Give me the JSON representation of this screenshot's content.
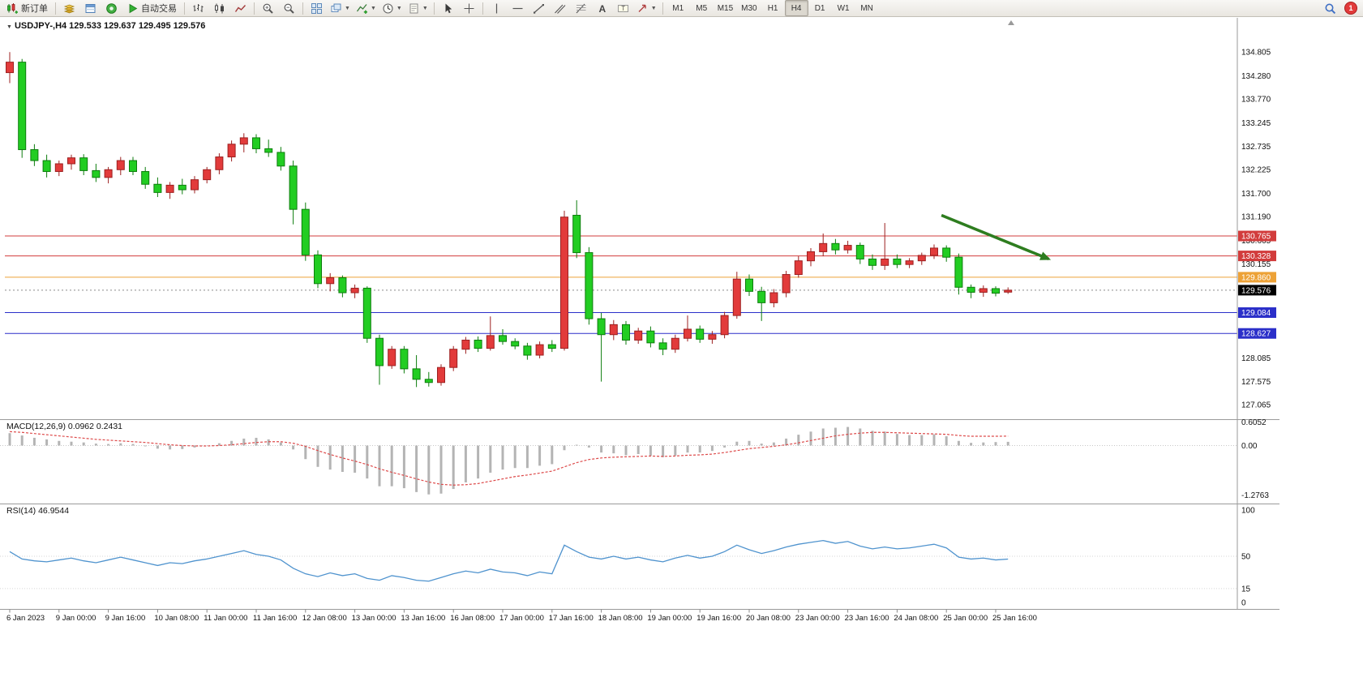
{
  "toolbar": {
    "new_order_label": "新订单",
    "auto_trading_label": "自动交易",
    "timeframes": [
      "M1",
      "M5",
      "M15",
      "M30",
      "H1",
      "H4",
      "D1",
      "W1",
      "MN"
    ],
    "active_timeframe": "H4",
    "notification_count": "1"
  },
  "chart": {
    "symbol_header": "USDJPY-,H4 129.533 129.637 129.495 129.576",
    "macd_label": "MACD(12,26,9) 0.0962 0.2431",
    "rsi_label": "RSI(14) 46.9544",
    "price_axis_labels": [
      "134.805",
      "134.280",
      "133.770",
      "133.245",
      "132.735",
      "132.225",
      "131.700",
      "131.190",
      "130.665",
      "130.155",
      "128.085",
      "127.575",
      "127.065"
    ],
    "macd_axis_labels": [
      "0.6052",
      "0.00",
      "-1.2763"
    ],
    "rsi_axis_labels": [
      "100",
      "50",
      "15",
      "0"
    ],
    "time_axis_labels": [
      "6 Jan 2023",
      "9 Jan 00:00",
      "9 Jan 16:00",
      "10 Jan 08:00",
      "11 Jan 00:00",
      "11 Jan 16:00",
      "12 Jan 08:00",
      "13 Jan 00:00",
      "13 Jan 16:00",
      "16 Jan 08:00",
      "17 Jan 00:00",
      "17 Jan 16:00",
      "18 Jan 08:00",
      "19 Jan 00:00",
      "19 Jan 16:00",
      "20 Jan 08:00",
      "23 Jan 00:00",
      "23 Jan 16:00",
      "24 Jan 08:00",
      "25 Jan 00:00",
      "25 Jan 16:00"
    ],
    "current_price": {
      "value": 129.576,
      "label": "129.576",
      "badge_bg": "#000000",
      "text_color": "#ffffff"
    }
  },
  "chart_data": {
    "type": "candlestick",
    "symbol": "USDJPY-",
    "timeframe": "H4",
    "last_ohlc": {
      "open": 129.533,
      "high": 129.637,
      "low": 129.495,
      "close": 129.576
    },
    "colors": {
      "up": "#e23b3b",
      "up_border": "#9c2020",
      "down": "#22cd22",
      "down_border": "#0d7d0d",
      "macd_histogram": "#b4b4b4",
      "macd_signal": "#dd4a4a",
      "rsi_line": "#4f93ce",
      "arrow": "#2e7d1f"
    },
    "hlines": [
      {
        "price": 130.765,
        "label": "130.765",
        "color": "#d23c3c"
      },
      {
        "price": 130.328,
        "label": "130.328",
        "color": "#d23c3c"
      },
      {
        "price": 129.86,
        "label": "129.860",
        "color": "#eda237"
      },
      {
        "price": 129.084,
        "label": "129.084",
        "color": "#2b2fc9"
      },
      {
        "price": 128.627,
        "label": "128.627",
        "color": "#2b2fc9"
      }
    ],
    "candles": [
      [
        134.35,
        134.8,
        134.12,
        134.58
      ],
      [
        134.58,
        134.65,
        132.48,
        132.66
      ],
      [
        132.66,
        132.78,
        132.3,
        132.42
      ],
      [
        132.42,
        132.55,
        132.05,
        132.18
      ],
      [
        132.18,
        132.42,
        132.08,
        132.35
      ],
      [
        132.35,
        132.55,
        132.22,
        132.48
      ],
      [
        132.48,
        132.56,
        132.1,
        132.2
      ],
      [
        132.2,
        132.35,
        131.95,
        132.05
      ],
      [
        132.05,
        132.28,
        131.92,
        132.22
      ],
      [
        132.22,
        132.5,
        132.1,
        132.42
      ],
      [
        132.42,
        132.5,
        132.1,
        132.18
      ],
      [
        132.18,
        132.28,
        131.8,
        131.9
      ],
      [
        131.9,
        132.05,
        131.62,
        131.72
      ],
      [
        131.72,
        131.95,
        131.58,
        131.88
      ],
      [
        131.88,
        132.02,
        131.68,
        131.78
      ],
      [
        131.78,
        132.08,
        131.7,
        132.0
      ],
      [
        132.0,
        132.28,
        131.92,
        132.22
      ],
      [
        132.22,
        132.58,
        132.12,
        132.5
      ],
      [
        132.5,
        132.86,
        132.4,
        132.78
      ],
      [
        132.78,
        133.02,
        132.6,
        132.92
      ],
      [
        132.92,
        133.0,
        132.58,
        132.68
      ],
      [
        132.68,
        132.88,
        132.5,
        132.6
      ],
      [
        132.6,
        132.72,
        132.2,
        132.3
      ],
      [
        132.3,
        132.42,
        131.02,
        131.35
      ],
      [
        131.35,
        131.5,
        130.22,
        130.35
      ],
      [
        130.35,
        130.45,
        129.62,
        129.72
      ],
      [
        129.72,
        129.95,
        129.55,
        129.85
      ],
      [
        129.85,
        129.9,
        129.42,
        129.52
      ],
      [
        129.52,
        129.7,
        129.4,
        129.62
      ],
      [
        129.62,
        129.66,
        128.42,
        128.52
      ],
      [
        128.52,
        128.6,
        127.5,
        127.92
      ],
      [
        127.92,
        128.35,
        127.85,
        128.28
      ],
      [
        128.28,
        128.35,
        127.75,
        127.85
      ],
      [
        127.85,
        128.15,
        127.45,
        127.62
      ],
      [
        127.62,
        127.78,
        127.46,
        127.55
      ],
      [
        127.55,
        127.95,
        127.48,
        127.88
      ],
      [
        127.88,
        128.35,
        127.8,
        128.28
      ],
      [
        128.28,
        128.55,
        128.18,
        128.48
      ],
      [
        128.48,
        128.56,
        128.22,
        128.3
      ],
      [
        128.3,
        129.0,
        128.25,
        128.58
      ],
      [
        128.58,
        128.72,
        128.38,
        128.45
      ],
      [
        128.45,
        128.52,
        128.28,
        128.35
      ],
      [
        128.35,
        128.42,
        128.05,
        128.15
      ],
      [
        128.15,
        128.45,
        128.08,
        128.38
      ],
      [
        128.38,
        128.48,
        128.22,
        128.3
      ],
      [
        128.3,
        131.32,
        128.25,
        131.18
      ],
      [
        131.22,
        131.55,
        130.28,
        130.4
      ],
      [
        130.4,
        130.52,
        128.82,
        128.95
      ],
      [
        128.95,
        129.08,
        127.57,
        128.6
      ],
      [
        128.6,
        128.92,
        128.48,
        128.82
      ],
      [
        128.82,
        128.9,
        128.38,
        128.48
      ],
      [
        128.48,
        128.75,
        128.4,
        128.68
      ],
      [
        128.68,
        128.78,
        128.32,
        128.42
      ],
      [
        128.42,
        128.52,
        128.15,
        128.28
      ],
      [
        128.28,
        128.6,
        128.2,
        128.52
      ],
      [
        128.52,
        129.02,
        128.45,
        128.72
      ],
      [
        128.72,
        128.8,
        128.42,
        128.5
      ],
      [
        128.5,
        128.68,
        128.4,
        128.6
      ],
      [
        128.6,
        129.1,
        128.52,
        129.02
      ],
      [
        129.02,
        129.98,
        128.95,
        129.82
      ],
      [
        129.82,
        129.92,
        129.45,
        129.55
      ],
      [
        129.55,
        129.65,
        128.9,
        129.3
      ],
      [
        129.3,
        129.6,
        129.2,
        129.52
      ],
      [
        129.52,
        130.0,
        129.42,
        129.92
      ],
      [
        129.92,
        130.32,
        129.85,
        130.22
      ],
      [
        130.22,
        130.5,
        130.1,
        130.42
      ],
      [
        130.42,
        130.82,
        130.32,
        130.6
      ],
      [
        130.6,
        130.7,
        130.36,
        130.46
      ],
      [
        130.46,
        130.66,
        130.38,
        130.56
      ],
      [
        130.56,
        130.62,
        130.15,
        130.26
      ],
      [
        130.26,
        130.36,
        130.02,
        130.12
      ],
      [
        130.12,
        131.05,
        130.02,
        130.26
      ],
      [
        130.26,
        130.36,
        130.06,
        130.14
      ],
      [
        130.14,
        130.28,
        130.06,
        130.22
      ],
      [
        130.22,
        130.4,
        130.13,
        130.34
      ],
      [
        130.34,
        130.58,
        130.26,
        130.5
      ],
      [
        130.5,
        130.56,
        130.2,
        130.3
      ],
      [
        130.3,
        130.38,
        129.48,
        129.64
      ],
      [
        129.64,
        129.7,
        129.4,
        129.53
      ],
      [
        129.53,
        129.68,
        129.43,
        129.61
      ],
      [
        129.61,
        129.66,
        129.44,
        129.51
      ],
      [
        129.533,
        129.637,
        129.495,
        129.576
      ]
    ],
    "indicators": {
      "macd": {
        "params": "12,26,9",
        "main_value": 0.0962,
        "signal_value": 0.2431,
        "axis_range": [
          -1.2763,
          0.6052
        ],
        "histogram": [
          0.32,
          0.26,
          0.2,
          0.16,
          0.12,
          0.1,
          0.08,
          0.05,
          0.04,
          0.06,
          0.04,
          -0.02,
          -0.08,
          -0.1,
          -0.09,
          -0.05,
          0.0,
          0.06,
          0.12,
          0.18,
          0.2,
          0.16,
          0.08,
          -0.1,
          -0.35,
          -0.55,
          -0.62,
          -0.68,
          -0.7,
          -0.85,
          -1.05,
          -1.05,
          -1.1,
          -1.2,
          -1.26,
          -1.24,
          -1.12,
          -0.95,
          -0.85,
          -0.7,
          -0.62,
          -0.58,
          -0.58,
          -0.52,
          -0.48,
          -0.12,
          0.02,
          -0.05,
          -0.18,
          -0.2,
          -0.25,
          -0.22,
          -0.26,
          -0.3,
          -0.26,
          -0.18,
          -0.18,
          -0.14,
          -0.05,
          0.1,
          0.12,
          0.05,
          0.08,
          0.18,
          0.28,
          0.36,
          0.44,
          0.46,
          0.48,
          0.44,
          0.38,
          0.36,
          0.3,
          0.27,
          0.27,
          0.29,
          0.24,
          0.12,
          0.07,
          0.08,
          0.09,
          0.0962
        ],
        "signal_line": [
          0.36,
          0.34,
          0.31,
          0.28,
          0.25,
          0.22,
          0.19,
          0.16,
          0.14,
          0.12,
          0.1,
          0.08,
          0.05,
          0.02,
          0.0,
          -0.01,
          -0.01,
          0.0,
          0.02,
          0.05,
          0.08,
          0.1,
          0.1,
          0.06,
          -0.02,
          -0.13,
          -0.23,
          -0.32,
          -0.4,
          -0.49,
          -0.6,
          -0.69,
          -0.77,
          -0.86,
          -0.94,
          -1.0,
          -1.02,
          -1.01,
          -0.98,
          -0.92,
          -0.86,
          -0.8,
          -0.76,
          -0.71,
          -0.66,
          -0.55,
          -0.44,
          -0.36,
          -0.32,
          -0.3,
          -0.29,
          -0.28,
          -0.27,
          -0.28,
          -0.27,
          -0.25,
          -0.24,
          -0.22,
          -0.18,
          -0.13,
          -0.08,
          -0.05,
          -0.02,
          0.02,
          0.07,
          0.13,
          0.19,
          0.25,
          0.29,
          0.32,
          0.34,
          0.34,
          0.33,
          0.32,
          0.31,
          0.3,
          0.29,
          0.26,
          0.24,
          0.24,
          0.24,
          0.2431
        ]
      },
      "rsi": {
        "period": 14,
        "value": 46.9544,
        "levels": [
          50,
          15
        ],
        "axis_range": [
          0,
          100
        ],
        "values": [
          55,
          47,
          45,
          44,
          46,
          48,
          45,
          43,
          46,
          49,
          46,
          43,
          40,
          43,
          42,
          45,
          47,
          50,
          53,
          56,
          52,
          50,
          46,
          37,
          31,
          28,
          32,
          29,
          31,
          26,
          24,
          29,
          27,
          24,
          23,
          27,
          31,
          34,
          32,
          36,
          33,
          32,
          29,
          33,
          31,
          62,
          55,
          49,
          47,
          50,
          47,
          49,
          46,
          44,
          48,
          51,
          48,
          50,
          55,
          62,
          57,
          53,
          56,
          60,
          63,
          65,
          67,
          64,
          66,
          61,
          58,
          60,
          58,
          59,
          61,
          63,
          59,
          49,
          47,
          48,
          46,
          46.95
        ]
      }
    },
    "annotations": [
      {
        "type": "arrow",
        "from_bar": 75.6,
        "from_price": 131.22,
        "to_bar": 84.3,
        "to_price": 130.26,
        "color": "#2e7d1f"
      }
    ]
  }
}
